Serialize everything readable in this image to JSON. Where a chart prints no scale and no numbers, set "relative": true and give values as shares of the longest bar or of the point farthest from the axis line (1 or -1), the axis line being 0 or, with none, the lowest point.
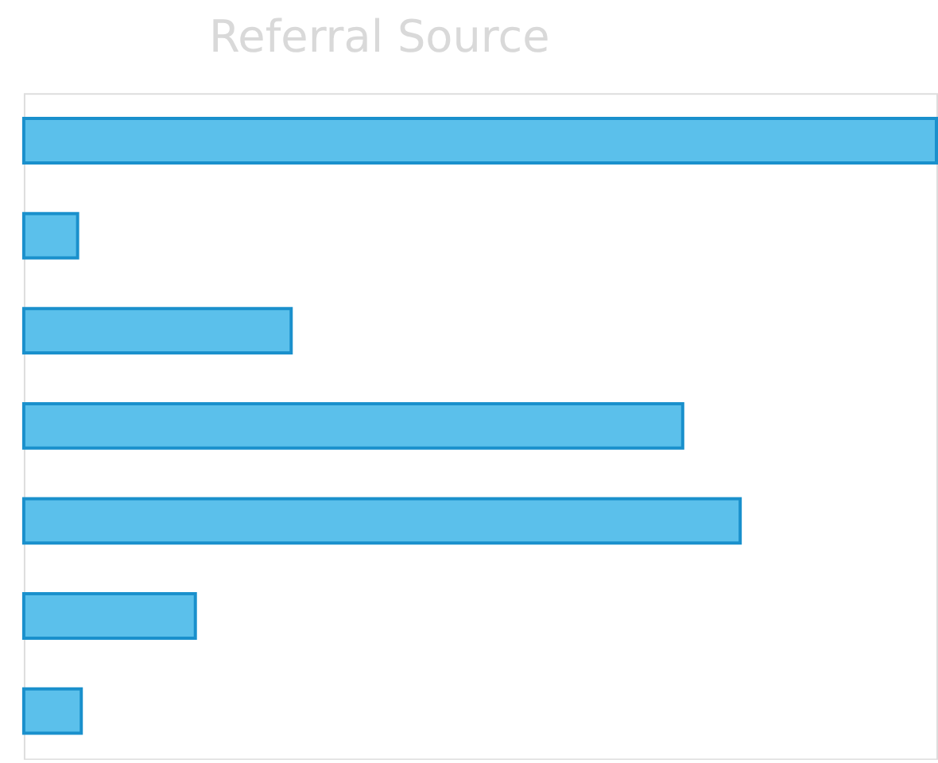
{
  "chart_data": {
    "type": "bar",
    "title": "Referral Source",
    "orientation": "horizontal",
    "relative": true,
    "categories": [
      null,
      null,
      null,
      null,
      null,
      null,
      null
    ],
    "values": [
      1,
      0.059,
      0.293,
      0.722,
      0.785,
      0.188,
      0.063
    ],
    "color": "#5bc0eb"
  }
}
